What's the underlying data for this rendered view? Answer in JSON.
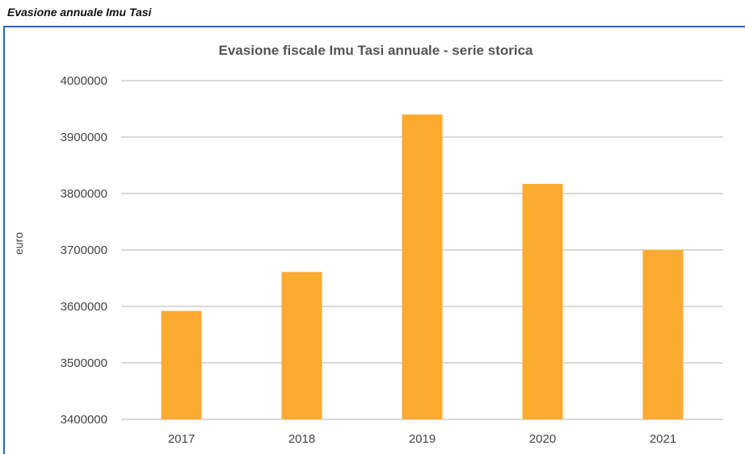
{
  "section_heading": "Evasione annuale Imu Tasi",
  "colors": {
    "bar": "#FDAA31",
    "grid": "#d9d9d9",
    "frame": "#2a63b8",
    "text": "#444444"
  },
  "chart_data": {
    "type": "bar",
    "title": "Evasione fiscale Imu Tasi annuale - serie storica",
    "xlabel": "",
    "ylabel": "euro",
    "categories": [
      "2017",
      "2018",
      "2019",
      "2020",
      "2021"
    ],
    "values": [
      3592000,
      3661000,
      3940000,
      3817000,
      3700000
    ],
    "ylim": [
      3400000,
      4000000
    ],
    "yticks": [
      "3400000",
      "3500000",
      "3600000",
      "3700000",
      "3800000",
      "3900000",
      "4000000"
    ],
    "grid": true,
    "legend": "none"
  }
}
